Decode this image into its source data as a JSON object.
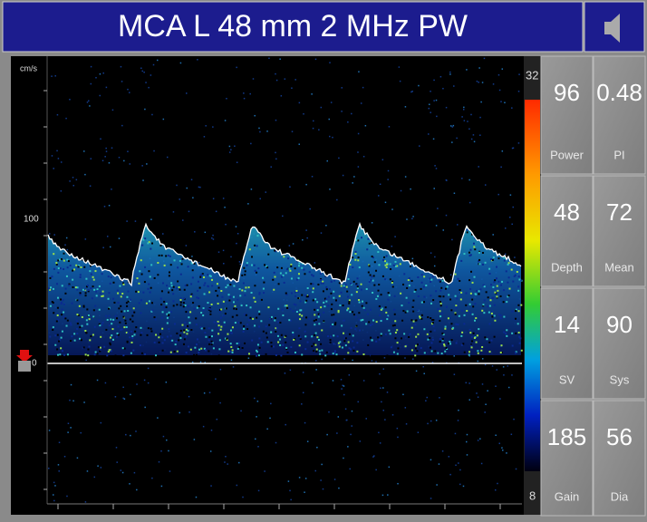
{
  "header": {
    "title": "MCA L 48 mm 2 MHz PW"
  },
  "scale": {
    "unit": "cm/s",
    "ticks": [
      "100",
      "0"
    ]
  },
  "color_bar": {
    "max": "32",
    "min": "8"
  },
  "metrics": [
    {
      "value": "96",
      "label": "Power"
    },
    {
      "value": "0.48",
      "label": "PI"
    },
    {
      "value": "48",
      "label": "Depth"
    },
    {
      "value": "72",
      "label": "Mean"
    },
    {
      "value": "14",
      "label": "SV"
    },
    {
      "value": "90",
      "label": "Sys"
    },
    {
      "value": "185",
      "label": "Gain"
    },
    {
      "value": "56",
      "label": "Dia"
    }
  ]
}
